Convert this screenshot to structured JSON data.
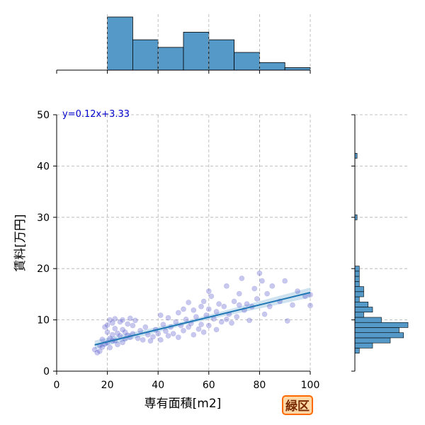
{
  "chart_data": {
    "type": "scatter",
    "xlabel": "専有面積[m2]",
    "ylabel": "賃料[万円]",
    "equation": "y=0.12x+3.33",
    "badge": "緑区",
    "xlim": [
      0,
      100
    ],
    "ylim": [
      0,
      50
    ],
    "xticks": [
      "0",
      "20",
      "40",
      "60",
      "80",
      "100"
    ],
    "yticks": [
      "0",
      "10",
      "20",
      "30",
      "40",
      "50"
    ],
    "grid": true,
    "colors": {
      "points": "#3b3bc4",
      "fit_line": "#1f77b4",
      "ci_band": "#a6cbe3",
      "hist_fill": "#5499c7",
      "badge_bg": "#ffd8a8",
      "badge_border": "#ff6a00"
    },
    "fit": {
      "slope": 0.12,
      "intercept": 3.33,
      "x_range": [
        15,
        100
      ]
    },
    "points": [
      [
        15,
        4.2
      ],
      [
        16,
        3.6
      ],
      [
        17,
        5.0
      ],
      [
        17,
        3.9
      ],
      [
        18,
        6.2
      ],
      [
        18,
        4.7
      ],
      [
        19,
        8.6
      ],
      [
        19,
        5.3
      ],
      [
        20,
        9.0
      ],
      [
        20,
        7.6
      ],
      [
        20,
        5.6
      ],
      [
        21,
        10.0
      ],
      [
        21,
        6.4
      ],
      [
        21,
        4.6
      ],
      [
        22,
        9.4
      ],
      [
        22,
        7.1
      ],
      [
        22,
        5.9
      ],
      [
        23,
        10.2
      ],
      [
        23,
        8.3
      ],
      [
        23,
        6.0
      ],
      [
        24,
        7.4
      ],
      [
        24,
        5.2
      ],
      [
        25,
        9.6
      ],
      [
        25,
        6.9
      ],
      [
        26,
        10.0
      ],
      [
        26,
        8.1
      ],
      [
        26,
        5.6
      ],
      [
        27,
        7.6
      ],
      [
        27,
        6.3
      ],
      [
        28,
        9.2
      ],
      [
        28,
        7.0
      ],
      [
        29,
        10.3
      ],
      [
        29,
        6.6
      ],
      [
        30,
        8.9
      ],
      [
        30,
        7.3
      ],
      [
        31,
        9.9
      ],
      [
        32,
        6.4
      ],
      [
        33,
        7.9
      ],
      [
        34,
        6.1
      ],
      [
        35,
        8.6
      ],
      [
        36,
        7.1
      ],
      [
        37,
        5.9
      ],
      [
        38,
        6.7
      ],
      [
        39,
        8.1
      ],
      [
        40,
        7.3
      ],
      [
        41,
        10.9
      ],
      [
        41,
        6.1
      ],
      [
        42,
        9.1
      ],
      [
        43,
        7.8
      ],
      [
        44,
        10.4
      ],
      [
        44,
        6.9
      ],
      [
        45,
        8.6
      ],
      [
        46,
        7.3
      ],
      [
        47,
        9.6
      ],
      [
        48,
        11.4
      ],
      [
        48,
        6.6
      ],
      [
        49,
        8.9
      ],
      [
        50,
        12.1
      ],
      [
        50,
        7.9
      ],
      [
        51,
        10.1
      ],
      [
        52,
        13.4
      ],
      [
        52,
        8.6
      ],
      [
        53,
        9.3
      ],
      [
        54,
        11.9
      ],
      [
        54,
        7.1
      ],
      [
        55,
        10.6
      ],
      [
        56,
        8.2
      ],
      [
        57,
        12.6
      ],
      [
        57,
        9.1
      ],
      [
        58,
        13.6
      ],
      [
        58,
        7.6
      ],
      [
        59,
        10.9
      ],
      [
        60,
        15.6
      ],
      [
        60,
        12.1
      ],
      [
        60,
        8.9
      ],
      [
        61,
        14.6
      ],
      [
        62,
        10.2
      ],
      [
        63,
        11.6
      ],
      [
        63,
        8.1
      ],
      [
        64,
        13.1
      ],
      [
        65,
        9.6
      ],
      [
        66,
        12.6
      ],
      [
        67,
        16.6
      ],
      [
        67,
        10.1
      ],
      [
        68,
        11.1
      ],
      [
        69,
        9.4
      ],
      [
        70,
        13.6
      ],
      [
        71,
        10.6
      ],
      [
        72,
        15.1
      ],
      [
        72,
        12.9
      ],
      [
        73,
        18.1
      ],
      [
        74,
        11.9
      ],
      [
        75,
        13.1
      ],
      [
        76,
        9.9
      ],
      [
        77,
        12.6
      ],
      [
        78,
        16.1
      ],
      [
        79,
        14.1
      ],
      [
        80,
        19.1
      ],
      [
        81,
        17.6
      ],
      [
        82,
        11.1
      ],
      [
        83,
        15.1
      ],
      [
        84,
        12.6
      ],
      [
        85,
        16.6
      ],
      [
        88,
        13.6
      ],
      [
        90,
        17.6
      ],
      [
        91,
        9.8
      ],
      [
        93,
        12.9
      ],
      [
        95,
        15.6
      ],
      [
        98,
        14.6
      ],
      [
        100,
        12.8
      ],
      [
        100,
        14.9
      ]
    ],
    "top_histogram": {
      "bin_edges": [
        0,
        10,
        20,
        30,
        40,
        50,
        60,
        70,
        80,
        90,
        100
      ],
      "counts": [
        0,
        0,
        21,
        12,
        9,
        15,
        12,
        7,
        3,
        1
      ]
    },
    "right_histogram": {
      "bin_edges": [
        3.5,
        4.5,
        5.5,
        6.5,
        7.5,
        8.5,
        9.5,
        10.5,
        11.5,
        12.5,
        13.5,
        14.5,
        15.5,
        16.5,
        17.5,
        18.5,
        19.5,
        20.5,
        29.5,
        30.5,
        41.5,
        42.5
      ],
      "counts": [
        1,
        4,
        8,
        11,
        10,
        12,
        6,
        2,
        4,
        3,
        1,
        2,
        2,
        1,
        1,
        1,
        1,
        0,
        0.5,
        0,
        0.5
      ]
    }
  }
}
